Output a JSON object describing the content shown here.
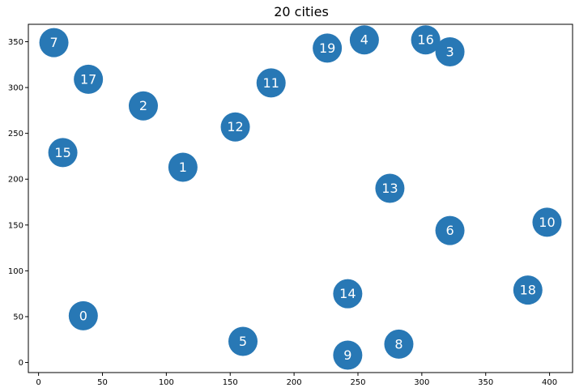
{
  "chart_data": {
    "type": "scatter",
    "title": "20 cities",
    "xlabel": "",
    "ylabel": "",
    "xlim": [
      -8,
      418
    ],
    "ylim": [
      -11,
      369
    ],
    "xticks": [
      0,
      50,
      100,
      150,
      200,
      250,
      300,
      350,
      400
    ],
    "yticks": [
      0,
      50,
      100,
      150,
      200,
      250,
      300,
      350
    ],
    "grid": false,
    "marker_color": "#2878b5",
    "label_color": "#ffffff",
    "points": [
      {
        "label": "0",
        "x": 35,
        "y": 51
      },
      {
        "label": "1",
        "x": 113,
        "y": 213
      },
      {
        "label": "2",
        "x": 82,
        "y": 280
      },
      {
        "label": "3",
        "x": 322,
        "y": 339
      },
      {
        "label": "4",
        "x": 255,
        "y": 352
      },
      {
        "label": "5",
        "x": 160,
        "y": 23
      },
      {
        "label": "6",
        "x": 322,
        "y": 144
      },
      {
        "label": "7",
        "x": 12,
        "y": 349
      },
      {
        "label": "8",
        "x": 282,
        "y": 20
      },
      {
        "label": "9",
        "x": 242,
        "y": 8
      },
      {
        "label": "10",
        "x": 398,
        "y": 153
      },
      {
        "label": "11",
        "x": 182,
        "y": 305
      },
      {
        "label": "12",
        "x": 154,
        "y": 257
      },
      {
        "label": "13",
        "x": 275,
        "y": 190
      },
      {
        "label": "14",
        "x": 242,
        "y": 75
      },
      {
        "label": "15",
        "x": 19,
        "y": 229
      },
      {
        "label": "16",
        "x": 303,
        "y": 352
      },
      {
        "label": "17",
        "x": 39,
        "y": 309
      },
      {
        "label": "18",
        "x": 383,
        "y": 79
      },
      {
        "label": "19",
        "x": 226,
        "y": 343
      }
    ]
  }
}
